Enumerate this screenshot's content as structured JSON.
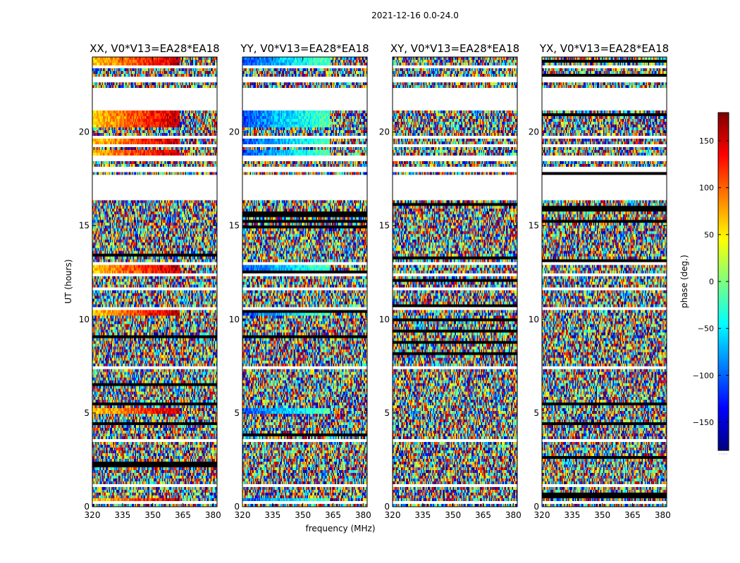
{
  "figure_title": "2021-12-16 0.0-24.0",
  "xlabel": "frequency (MHz)",
  "ylabel": "UT (hours)",
  "colorbar": {
    "label": "phase (deg.)",
    "range": [
      -180,
      180
    ],
    "ticks": [
      150,
      100,
      50,
      0,
      -50,
      -100,
      -150
    ],
    "tick_labels": [
      "150",
      "100",
      "50",
      "0",
      "−50",
      "−100",
      "−150"
    ],
    "colormap": [
      "#00007f",
      "#0000ff",
      "#007fff",
      "#00ffff",
      "#7fff7f",
      "#ffff00",
      "#ff7f00",
      "#ff0000",
      "#7f0000"
    ],
    "footer_mark": "·····"
  },
  "chart_data": {
    "type": "heatmap",
    "x_range": [
      320,
      382
    ],
    "y_range": [
      0,
      24
    ],
    "x_ticks": [
      320,
      335,
      350,
      365,
      380
    ],
    "y_ticks": [
      0,
      5,
      10,
      15,
      20
    ],
    "value_quantity": "phase (deg.)",
    "panels": [
      {
        "title": "XX, V0*V13=EA28*EA18",
        "coherent": true,
        "base_phase": 60
      },
      {
        "title": "YY, V0*V13=EA28*EA18",
        "coherent": true,
        "base_phase": -110
      },
      {
        "title": "XY, V0*V13=EA28*EA18",
        "coherent": false,
        "base_phase": 0
      },
      {
        "title": "YX, V0*V13=EA28*EA18",
        "coherent": false,
        "base_phase": 0
      }
    ],
    "flagged_ut_ranges": [
      [
        0.2,
        0.25
      ],
      [
        0.55,
        0.62
      ],
      [
        1.1,
        1.15
      ],
      [
        1.65,
        1.7
      ],
      [
        2.2,
        2.25
      ],
      [
        2.85,
        2.9
      ],
      [
        3.5,
        3.58
      ],
      [
        4.35,
        4.4
      ],
      [
        5.25,
        5.3
      ],
      [
        7.4,
        7.45
      ],
      [
        7.8,
        7.85
      ],
      [
        8.5,
        8.6
      ],
      [
        8.85,
        8.9
      ],
      [
        9.25,
        9.3
      ],
      [
        10.15,
        10.2
      ],
      [
        10.55,
        10.65
      ],
      [
        11.55,
        11.65
      ],
      [
        12.25,
        12.5
      ],
      [
        12.9,
        13.0
      ],
      [
        16.35,
        17.65
      ],
      [
        17.9,
        18.2
      ],
      [
        18.45,
        18.7
      ],
      [
        19.0,
        19.1
      ],
      [
        19.25,
        19.35
      ],
      [
        19.7,
        19.8
      ],
      [
        21.1,
        22.0
      ],
      [
        22.1,
        22.35
      ],
      [
        22.6,
        23.0
      ],
      [
        23.45,
        23.55
      ]
    ],
    "coherent_ut_ranges": [
      [
        0.3,
        0.5
      ],
      [
        4.9,
        5.2
      ],
      [
        10.25,
        10.55
      ],
      [
        12.5,
        12.9
      ],
      [
        18.8,
        19.0
      ],
      [
        19.4,
        19.6
      ],
      [
        20.2,
        21.1
      ],
      [
        23.6,
        24.0
      ]
    ]
  }
}
